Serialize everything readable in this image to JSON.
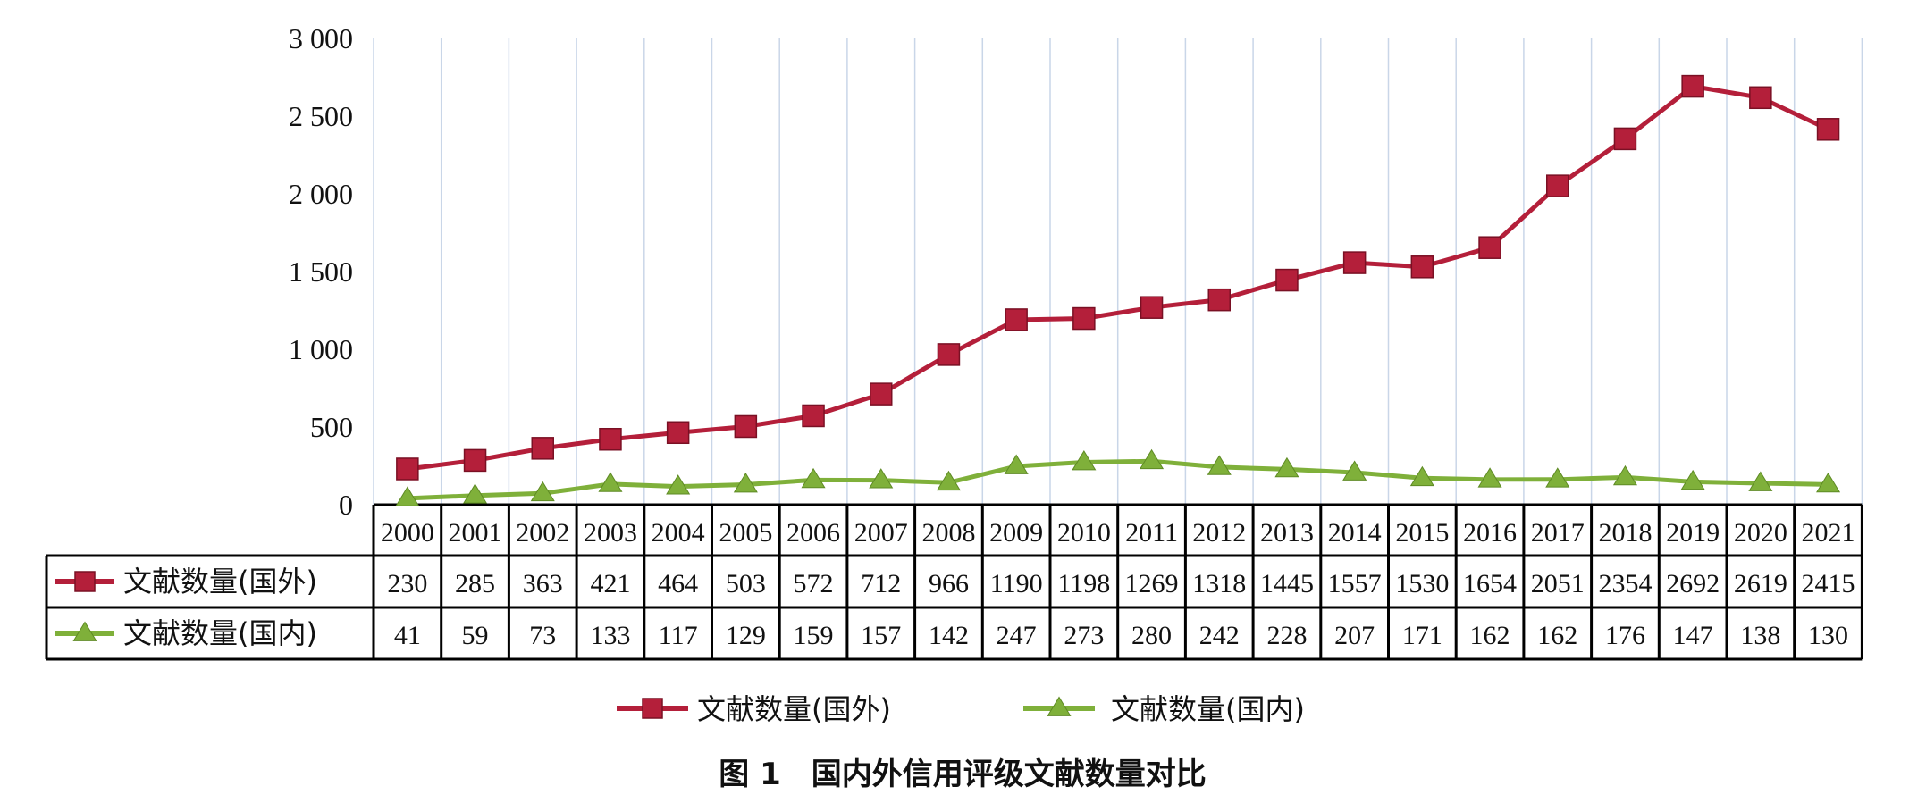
{
  "chart_data": {
    "type": "line",
    "title": "",
    "caption": "图 1　国内外信用评级文献数量对比",
    "categories": [
      "2000",
      "2001",
      "2002",
      "2003",
      "2004",
      "2005",
      "2006",
      "2007",
      "2008",
      "2009",
      "2010",
      "2011",
      "2012",
      "2013",
      "2014",
      "2015",
      "2016",
      "2017",
      "2018",
      "2019",
      "2020",
      "2021"
    ],
    "series": [
      {
        "name": "文献数量(国外)",
        "color": "#b41f3a",
        "marker": "square",
        "values": [
          230,
          285,
          363,
          421,
          464,
          503,
          572,
          712,
          966,
          1190,
          1198,
          1269,
          1318,
          1445,
          1557,
          1530,
          1654,
          2051,
          2354,
          2692,
          2619,
          2415
        ]
      },
      {
        "name": "文献数量(国内)",
        "color": "#7fb03a",
        "marker": "triangle",
        "values": [
          41,
          59,
          73,
          133,
          117,
          129,
          159,
          157,
          142,
          247,
          273,
          280,
          242,
          228,
          207,
          171,
          162,
          162,
          176,
          147,
          138,
          130
        ]
      }
    ],
    "y_ticks": [
      "0",
      "500",
      "1 000",
      "1 500",
      "2 000",
      "2 500",
      "3 000"
    ],
    "ylim": [
      0,
      3000
    ],
    "xlabel": "",
    "ylabel": "",
    "grid": "vertical",
    "legend": "bottom-center",
    "data_table": true
  }
}
